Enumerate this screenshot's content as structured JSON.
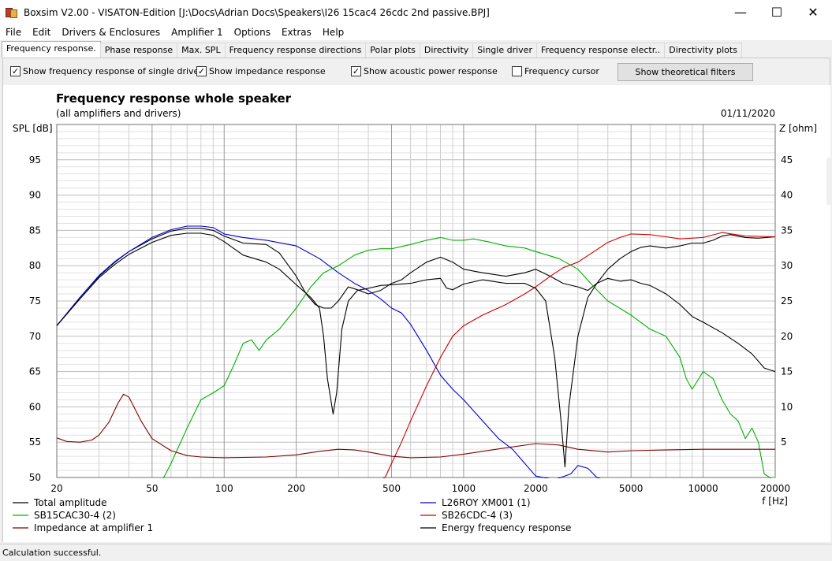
{
  "window": {
    "title": "Boxsim V2.00 - VISATON-Edition [J:\\Docs\\Adrian Docs\\Speakers\\I26 15cac4 26cdc 2nd passive.BPJ]",
    "minimize": "—",
    "maximize": "☐",
    "close": "✕"
  },
  "menu": [
    "File",
    "Edit",
    "Drivers & Enclosures",
    "Amplifier 1",
    "Options",
    "Extras",
    "Help"
  ],
  "tabs": [
    "Frequency response.",
    "Phase response",
    "Max. SPL",
    "Frequency response directions",
    "Polar plots",
    "Directivity",
    "Single driver",
    "Frequency response electr..",
    "Directivity plots"
  ],
  "options": {
    "single_driver": {
      "label": "Show frequency response of single driver",
      "checked": true,
      "mark": "✓"
    },
    "impedance": {
      "label": "Show impedance response",
      "checked": true,
      "mark": "✓"
    },
    "acoustic_power": {
      "label": "Show acoustic power response",
      "checked": true,
      "mark": "✓"
    },
    "cursor": {
      "label": "Frequency cursor",
      "checked": false,
      "mark": ""
    },
    "theoretical_button": "Show theoretical filters"
  },
  "status": "Calculation successful.",
  "chart_data": {
    "type": "line",
    "title": "Frequency response whole speaker",
    "subtitle": "(all amplifiers and drivers)",
    "date": "01/11/2020",
    "ylabel": "SPL [dB]",
    "y2label": "Z [ohm]",
    "xlabel": "f [Hz]",
    "xscale": "log",
    "xlim": [
      20,
      20000
    ],
    "ylim": [
      50,
      100
    ],
    "y2lim": [
      0,
      50
    ],
    "grid": true,
    "legend_position": "bottom",
    "x_ticks": [
      {
        "v": 20,
        "l": "20"
      },
      {
        "v": 50,
        "l": "50"
      },
      {
        "v": 100,
        "l": "100"
      },
      {
        "v": 200,
        "l": "200"
      },
      {
        "v": 500,
        "l": "500"
      },
      {
        "v": 1000,
        "l": "1000"
      },
      {
        "v": 2000,
        "l": "2000"
      },
      {
        "v": 5000,
        "l": "5000"
      },
      {
        "v": 10000,
        "l": "10000"
      },
      {
        "v": 20000,
        "l": "20000"
      }
    ],
    "y_ticks": [
      {
        "v": 50,
        "l": "50"
      },
      {
        "v": 55,
        "l": "55"
      },
      {
        "v": 60,
        "l": "60"
      },
      {
        "v": 65,
        "l": "65"
      },
      {
        "v": 70,
        "l": "70"
      },
      {
        "v": 75,
        "l": "75"
      },
      {
        "v": 80,
        "l": "80"
      },
      {
        "v": 85,
        "l": "85"
      },
      {
        "v": 90,
        "l": "90"
      },
      {
        "v": 95,
        "l": "95"
      }
    ],
    "y2_ticks": [
      {
        "v": 5,
        "l": "5"
      },
      {
        "v": 10,
        "l": "10"
      },
      {
        "v": 15,
        "l": "15"
      },
      {
        "v": 20,
        "l": "20"
      },
      {
        "v": 25,
        "l": "25"
      },
      {
        "v": 30,
        "l": "30"
      },
      {
        "v": 35,
        "l": "35"
      },
      {
        "v": 40,
        "l": "40"
      },
      {
        "v": 45,
        "l": "45"
      }
    ],
    "series": [
      {
        "name": "Total amplitude",
        "color": "#000000",
        "axis": "left",
        "points": [
          [
            20,
            71.5
          ],
          [
            25,
            75.5
          ],
          [
            30,
            78.5
          ],
          [
            35,
            80.5
          ],
          [
            40,
            82
          ],
          [
            50,
            83.8
          ],
          [
            60,
            84.9
          ],
          [
            70,
            85.3
          ],
          [
            80,
            85.3
          ],
          [
            90,
            85
          ],
          [
            100,
            84.2
          ],
          [
            120,
            83.2
          ],
          [
            150,
            83
          ],
          [
            170,
            81.8
          ],
          [
            200,
            78.5
          ],
          [
            220,
            76
          ],
          [
            240,
            74.5
          ],
          [
            260,
            74
          ],
          [
            280,
            74
          ],
          [
            300,
            75
          ],
          [
            330,
            77
          ],
          [
            360,
            76.6
          ],
          [
            400,
            76
          ],
          [
            450,
            76.5
          ],
          [
            500,
            77.5
          ],
          [
            550,
            78
          ],
          [
            600,
            79
          ],
          [
            700,
            80.5
          ],
          [
            800,
            81.2
          ],
          [
            900,
            80.5
          ],
          [
            1000,
            79.5
          ],
          [
            1200,
            79
          ],
          [
            1500,
            78.5
          ],
          [
            1800,
            79
          ],
          [
            2000,
            79.5
          ],
          [
            2300,
            78.5
          ],
          [
            2600,
            77.5
          ],
          [
            3000,
            77
          ],
          [
            3300,
            76.5
          ],
          [
            3600,
            77.5
          ],
          [
            4000,
            79.5
          ],
          [
            4500,
            81
          ],
          [
            5000,
            82
          ],
          [
            5500,
            82.6
          ],
          [
            6000,
            82.8
          ],
          [
            7000,
            82.5
          ],
          [
            8000,
            82.8
          ],
          [
            9000,
            83.2
          ],
          [
            10000,
            83.2
          ],
          [
            11000,
            83.6
          ],
          [
            12000,
            84.2
          ],
          [
            13000,
            84.4
          ],
          [
            15000,
            84
          ],
          [
            17000,
            83.9
          ],
          [
            20000,
            84.1
          ]
        ]
      },
      {
        "name": "L26ROY XM001 (1)",
        "color": "#0000cc",
        "axis": "left",
        "points": [
          [
            20,
            71.5
          ],
          [
            25,
            75.5
          ],
          [
            30,
            78.6
          ],
          [
            35,
            80.6
          ],
          [
            40,
            82
          ],
          [
            50,
            84
          ],
          [
            60,
            85.1
          ],
          [
            70,
            85.6
          ],
          [
            80,
            85.6
          ],
          [
            90,
            85.4
          ],
          [
            100,
            84.5
          ],
          [
            120,
            84
          ],
          [
            150,
            83.6
          ],
          [
            200,
            82.8
          ],
          [
            250,
            81
          ],
          [
            300,
            79
          ],
          [
            350,
            77.5
          ],
          [
            400,
            76.5
          ],
          [
            450,
            75.3
          ],
          [
            500,
            74
          ],
          [
            550,
            73.3
          ],
          [
            600,
            71.7
          ],
          [
            700,
            68
          ],
          [
            800,
            64.5
          ],
          [
            900,
            62.5
          ],
          [
            1000,
            61
          ],
          [
            1200,
            58
          ],
          [
            1400,
            55.5
          ],
          [
            1600,
            54
          ],
          [
            1800,
            52
          ],
          [
            2000,
            50.2
          ],
          [
            2400,
            49.7
          ],
          [
            2800,
            50.5
          ],
          [
            3000,
            51.7
          ],
          [
            3300,
            51.3
          ],
          [
            3600,
            50
          ],
          [
            4000,
            49.5
          ],
          [
            20000,
            49.5
          ]
        ]
      },
      {
        "name": "SB15CAC30-4 (2)",
        "color": "#00b000",
        "axis": "left",
        "points": [
          [
            20,
            49.5
          ],
          [
            55,
            49.5
          ],
          [
            60,
            52
          ],
          [
            70,
            57
          ],
          [
            80,
            61
          ],
          [
            90,
            62
          ],
          [
            100,
            63
          ],
          [
            110,
            66
          ],
          [
            120,
            69
          ],
          [
            130,
            69.5
          ],
          [
            140,
            68
          ],
          [
            150,
            69.5
          ],
          [
            170,
            71
          ],
          [
            200,
            74
          ],
          [
            230,
            77
          ],
          [
            260,
            79
          ],
          [
            300,
            80
          ],
          [
            350,
            81.5
          ],
          [
            400,
            82.2
          ],
          [
            450,
            82.4
          ],
          [
            500,
            82.4
          ],
          [
            600,
            83
          ],
          [
            700,
            83.6
          ],
          [
            800,
            84
          ],
          [
            900,
            83.6
          ],
          [
            1000,
            83.6
          ],
          [
            1100,
            83.8
          ],
          [
            1300,
            83.3
          ],
          [
            1500,
            82.8
          ],
          [
            1800,
            82.5
          ],
          [
            2000,
            82
          ],
          [
            2500,
            81
          ],
          [
            3000,
            79.5
          ],
          [
            3500,
            77
          ],
          [
            4000,
            75
          ],
          [
            5000,
            73
          ],
          [
            6000,
            71
          ],
          [
            7000,
            70
          ],
          [
            8000,
            67
          ],
          [
            8500,
            64
          ],
          [
            9000,
            62.5
          ],
          [
            10000,
            65
          ],
          [
            11000,
            64
          ],
          [
            12000,
            61
          ],
          [
            13000,
            59
          ],
          [
            14000,
            58
          ],
          [
            15000,
            55.5
          ],
          [
            16000,
            57
          ],
          [
            17000,
            55
          ],
          [
            18000,
            50.5
          ],
          [
            20000,
            49.5
          ]
        ]
      },
      {
        "name": "SB26CDC-4 (3)",
        "color": "#cc0000",
        "axis": "left",
        "points": [
          [
            20,
            49.5
          ],
          [
            440,
            49.5
          ],
          [
            470,
            50
          ],
          [
            500,
            52
          ],
          [
            550,
            55
          ],
          [
            600,
            58
          ],
          [
            700,
            63
          ],
          [
            800,
            67
          ],
          [
            900,
            70
          ],
          [
            1000,
            71.5
          ],
          [
            1200,
            73
          ],
          [
            1500,
            74.5
          ],
          [
            1800,
            76
          ],
          [
            2000,
            77
          ],
          [
            2300,
            78.5
          ],
          [
            2600,
            79.7
          ],
          [
            3000,
            80.5
          ],
          [
            3500,
            82
          ],
          [
            4000,
            83.3
          ],
          [
            4500,
            84
          ],
          [
            5000,
            84.5
          ],
          [
            6000,
            84.4
          ],
          [
            7000,
            84.1
          ],
          [
            8000,
            83.8
          ],
          [
            10000,
            84
          ],
          [
            12000,
            84.7
          ],
          [
            15000,
            84.2
          ],
          [
            20000,
            84.1
          ]
        ]
      },
      {
        "name": "Impedance at amplifier 1",
        "color": "#800000",
        "axis": "right",
        "points": [
          [
            20,
            5.6
          ],
          [
            22,
            5.1
          ],
          [
            25,
            5
          ],
          [
            28,
            5.3
          ],
          [
            30,
            6
          ],
          [
            33,
            7.8
          ],
          [
            36,
            10.5
          ],
          [
            38,
            11.8
          ],
          [
            40,
            11.4
          ],
          [
            45,
            8
          ],
          [
            50,
            5.5
          ],
          [
            60,
            3.8
          ],
          [
            70,
            3.1
          ],
          [
            80,
            2.9
          ],
          [
            100,
            2.8
          ],
          [
            150,
            2.9
          ],
          [
            200,
            3.2
          ],
          [
            250,
            3.7
          ],
          [
            300,
            4
          ],
          [
            350,
            3.9
          ],
          [
            400,
            3.6
          ],
          [
            500,
            3
          ],
          [
            600,
            2.8
          ],
          [
            800,
            2.9
          ],
          [
            1000,
            3.3
          ],
          [
            1500,
            4.2
          ],
          [
            2000,
            4.8
          ],
          [
            2500,
            4.6
          ],
          [
            3000,
            4
          ],
          [
            4000,
            3.6
          ],
          [
            5000,
            3.8
          ],
          [
            7000,
            3.9
          ],
          [
            10000,
            4
          ],
          [
            20000,
            4
          ]
        ]
      },
      {
        "name": "Energy frequency response",
        "color": "#000000",
        "axis": "left",
        "points": [
          [
            20,
            71.5
          ],
          [
            25,
            75.3
          ],
          [
            30,
            78.3
          ],
          [
            35,
            80.2
          ],
          [
            40,
            81.6
          ],
          [
            50,
            83.3
          ],
          [
            60,
            84.3
          ],
          [
            70,
            84.6
          ],
          [
            80,
            84.6
          ],
          [
            90,
            84.3
          ],
          [
            100,
            83.4
          ],
          [
            120,
            81.5
          ],
          [
            150,
            80.5
          ],
          [
            170,
            79.5
          ],
          [
            200,
            77.3
          ],
          [
            230,
            75.5
          ],
          [
            250,
            74
          ],
          [
            260,
            70
          ],
          [
            270,
            64
          ],
          [
            285,
            59
          ],
          [
            295,
            62
          ],
          [
            310,
            71
          ],
          [
            330,
            75
          ],
          [
            360,
            76.5
          ],
          [
            400,
            76.8
          ],
          [
            450,
            77.2
          ],
          [
            500,
            77.3
          ],
          [
            600,
            77.5
          ],
          [
            700,
            78
          ],
          [
            800,
            78.2
          ],
          [
            850,
            76.8
          ],
          [
            900,
            76.6
          ],
          [
            1000,
            77.4
          ],
          [
            1200,
            78
          ],
          [
            1500,
            77.5
          ],
          [
            1800,
            77.5
          ],
          [
            2000,
            76.8
          ],
          [
            2200,
            75
          ],
          [
            2400,
            67
          ],
          [
            2550,
            58
          ],
          [
            2650,
            51.5
          ],
          [
            2750,
            60
          ],
          [
            3000,
            70
          ],
          [
            3300,
            75.5
          ],
          [
            3600,
            77.5
          ],
          [
            4000,
            78.2
          ],
          [
            4500,
            77.8
          ],
          [
            5000,
            78
          ],
          [
            5500,
            77.5
          ],
          [
            6000,
            77.2
          ],
          [
            7000,
            76
          ],
          [
            8000,
            74.5
          ],
          [
            9000,
            72.8
          ],
          [
            10000,
            72
          ],
          [
            12000,
            70.5
          ],
          [
            14000,
            69
          ],
          [
            16000,
            67.5
          ],
          [
            18000,
            65.5
          ],
          [
            20000,
            65
          ]
        ]
      }
    ]
  }
}
